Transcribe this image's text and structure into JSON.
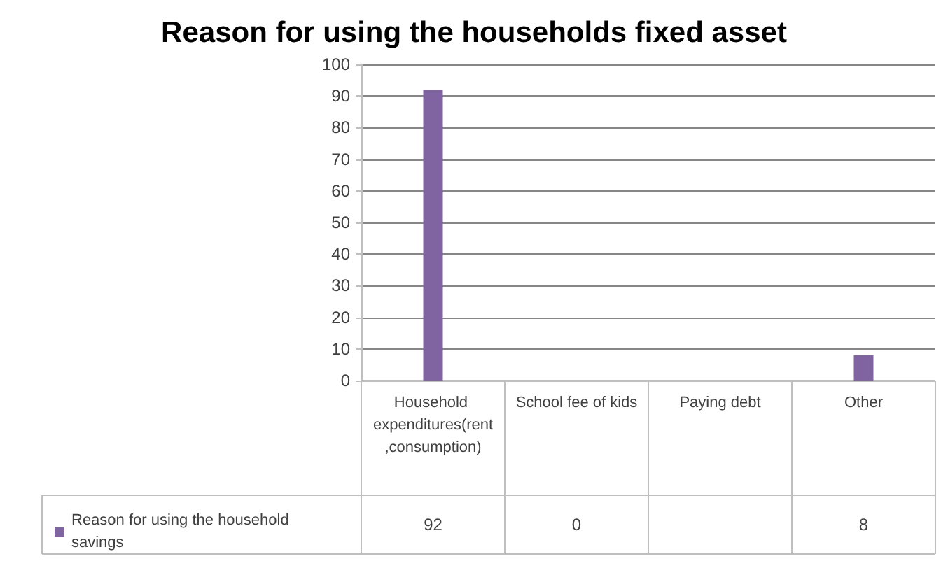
{
  "chart_data": {
    "type": "bar",
    "title": "Reason for using the households fixed asset",
    "categories": [
      "Household expenditures(rent,consumption)",
      "School fee of kids",
      "Paying debt",
      "Other"
    ],
    "series": [
      {
        "name": "Reason for using the household savings",
        "color": "#8064a2",
        "values": [
          92,
          0,
          null,
          8
        ]
      }
    ],
    "ylim": [
      0,
      100
    ],
    "yticks": [
      0,
      10,
      20,
      30,
      40,
      50,
      60,
      70,
      80,
      90,
      100
    ],
    "grid": "y",
    "legend": "bottom left",
    "data_labels": true
  }
}
